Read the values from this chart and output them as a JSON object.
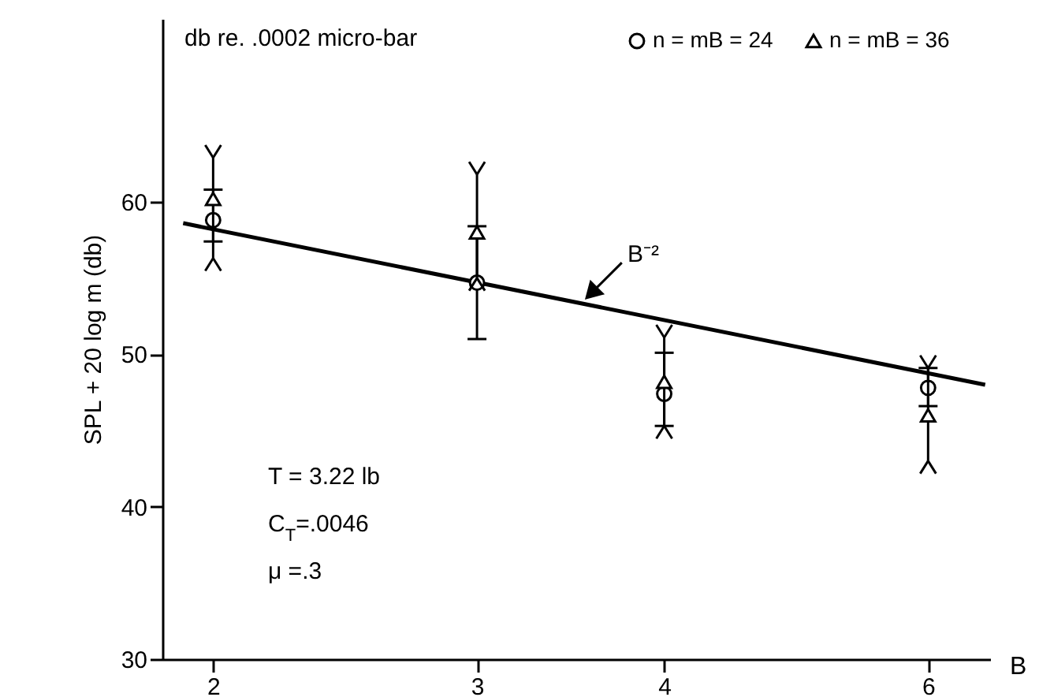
{
  "chart_data": {
    "type": "scatter",
    "xlabel": "B",
    "ylabel": "SPL + 20 log m  (db)",
    "log": "x",
    "legend": "top right",
    "x": [
      2,
      3,
      4,
      6
    ],
    "xlim": [
      1.85,
      6.6
    ],
    "xticks": [
      2,
      3,
      4,
      6
    ],
    "ylim": [
      30,
      72
    ],
    "yticks": [
      30,
      40,
      50,
      60
    ],
    "annotations": [
      "db re. .0002 micro-bar",
      "T = 3.22 lb",
      "C$_{T}$=.0046",
      "μ =.3",
      {
        "text": "B⁻²",
        "x": 3.55,
        "y": 53.7
      }
    ],
    "series": [
      {
        "name": "n = mB = 24",
        "color": "#000000",
        "marker": "circle",
        "values": [
          58.8,
          54.7,
          47.4,
          47.8
        ],
        "errors": [
          [
            57.4,
            60.8
          ],
          [
            51.0,
            58.4
          ],
          [
            45.3,
            50.1
          ],
          [
            46.6,
            49.1
          ]
        ]
      },
      {
        "name": "n = mB = 36",
        "color": "#000000",
        "marker": "triangle",
        "values": [
          60.2,
          58.0,
          48.2,
          46.0
        ],
        "errors": [
          [
            56.3,
            62.9
          ],
          [
            55.0,
            61.8
          ],
          [
            45.3,
            51.1
          ],
          [
            43.0,
            49.1
          ]
        ]
      },
      {
        "type": "line",
        "color": "#000000",
        "x": [
          1.91,
          6.55
        ],
        "values": [
          58.6,
          48.0
        ]
      }
    ]
  }
}
